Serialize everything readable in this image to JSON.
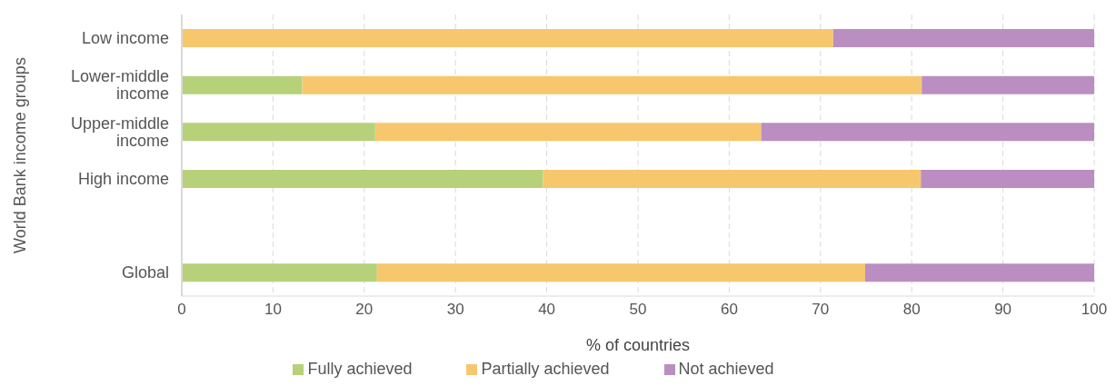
{
  "chart_data": {
    "type": "bar",
    "orientation": "horizontal",
    "stacked": true,
    "xlabel": "% of countries",
    "ylabel": "World Bank income groups",
    "categories": [
      "Low income",
      "Lower-middle income",
      "Upper-middle income",
      "High income",
      null,
      "Global"
    ],
    "series": [
      {
        "name": "Fully achieved",
        "color": "#b7d17a",
        "values": [
          0,
          13.2,
          21.2,
          39.6,
          null,
          21.4
        ]
      },
      {
        "name": "Partially achieved",
        "color": "#f7c76e",
        "values": [
          71.4,
          67.9,
          42.3,
          41.4,
          null,
          53.5
        ]
      },
      {
        "name": "Not achieved",
        "color": "#bb8ec1",
        "values": [
          28.6,
          18.9,
          36.5,
          19.0,
          null,
          25.1
        ]
      }
    ],
    "xlim": [
      0,
      100
    ],
    "xticks": [
      0,
      10,
      20,
      30,
      40,
      50,
      60,
      70,
      80,
      90,
      100
    ],
    "grid": "x",
    "legend": "bottom"
  }
}
